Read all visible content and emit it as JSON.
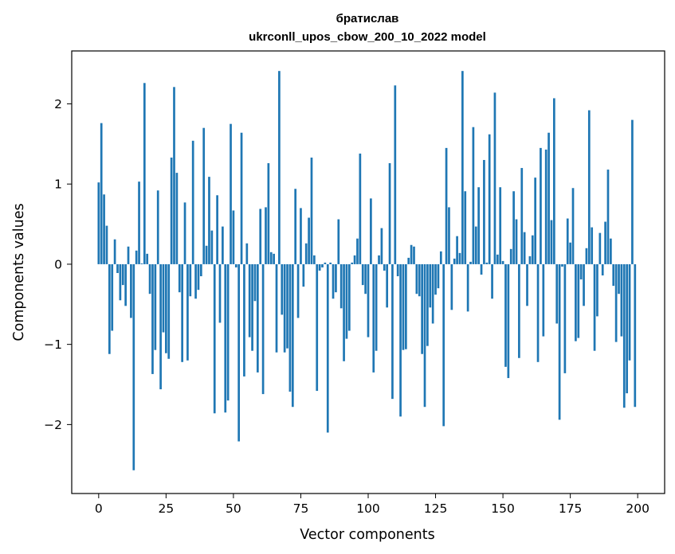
{
  "chart_data": {
    "type": "bar",
    "title_line1": "братислав",
    "title_line2": "ukrconll_upos_cbow_200_10_2022 model",
    "xlabel": "Vector components",
    "ylabel": "Components values",
    "xlim": [
      -10,
      210
    ],
    "ylim": [
      -2.86,
      2.66
    ],
    "xticks": [
      0,
      25,
      50,
      75,
      100,
      125,
      150,
      175,
      200
    ],
    "yticks": [
      -2,
      -1,
      0,
      1,
      2
    ],
    "ytick_labels": [
      "−2",
      "−1",
      "0",
      "1",
      "2"
    ],
    "bar_color": "#1f77b4",
    "grid": false,
    "values": [
      1.02,
      1.76,
      0.87,
      0.48,
      -1.12,
      -0.83,
      0.31,
      -0.11,
      -0.45,
      -0.26,
      -0.52,
      0.22,
      -0.67,
      -2.57,
      0.17,
      1.03,
      0.01,
      2.26,
      0.13,
      -0.37,
      -1.37,
      -1.07,
      0.92,
      -1.56,
      -0.85,
      -1.11,
      -1.18,
      1.33,
      2.21,
      1.14,
      -0.35,
      -1.22,
      0.77,
      -1.2,
      -0.4,
      1.54,
      -0.43,
      -0.32,
      -0.15,
      1.7,
      0.23,
      1.09,
      0.42,
      -1.86,
      0.86,
      -0.73,
      0.47,
      -1.85,
      -1.7,
      1.75,
      0.67,
      -0.04,
      -2.21,
      1.64,
      -1.4,
      0.26,
      -0.91,
      -1.08,
      -0.46,
      -1.35,
      0.69,
      -1.62,
      0.71,
      1.26,
      0.15,
      0.13,
      -1.1,
      2.41,
      -0.63,
      -1.1,
      -1.05,
      -1.59,
      -1.78,
      0.94,
      -0.67,
      0.7,
      -0.28,
      0.26,
      0.58,
      1.33,
      0.11,
      -1.58,
      -0.08,
      -0.04,
      0.02,
      -2.1,
      0.02,
      -0.43,
      -0.35,
      0.56,
      -0.55,
      -1.21,
      -0.93,
      -0.83,
      0.02,
      0.11,
      0.32,
      1.38,
      -0.26,
      -0.37,
      -0.91,
      0.82,
      -1.35,
      -1.08,
      0.11,
      0.45,
      -0.08,
      -0.54,
      1.26,
      -1.68,
      2.23,
      -0.15,
      -1.9,
      -1.07,
      -1.06,
      0.08,
      0.24,
      0.22,
      -0.37,
      -0.4,
      -1.12,
      -1.78,
      -1.02,
      -0.54,
      -0.74,
      -0.38,
      -0.3,
      0.16,
      -2.02,
      1.45,
      0.71,
      -0.57,
      0.07,
      0.35,
      0.14,
      2.41,
      0.91,
      -0.59,
      0.03,
      1.71,
      0.47,
      0.96,
      -0.13,
      1.3,
      0.02,
      1.62,
      -0.43,
      2.14,
      0.12,
      0.96,
      0.04,
      -1.28,
      -1.42,
      0.19,
      0.91,
      0.56,
      -1.17,
      1.2,
      0.4,
      -0.52,
      0.1,
      0.36,
      1.08,
      -1.22,
      1.45,
      -0.9,
      1.43,
      1.64,
      0.55,
      2.07,
      -0.74,
      -1.94,
      -0.03,
      -1.36,
      0.57,
      0.27,
      0.95,
      -0.96,
      -0.92,
      -0.19,
      -0.52,
      0.2,
      1.92,
      0.46,
      -1.08,
      -0.65,
      0.39,
      -0.14,
      0.53,
      1.18,
      0.32,
      -0.27,
      -0.97,
      -0.37,
      -0.9,
      -1.79,
      -1.61,
      -1.2,
      1.8,
      -1.78
    ]
  }
}
